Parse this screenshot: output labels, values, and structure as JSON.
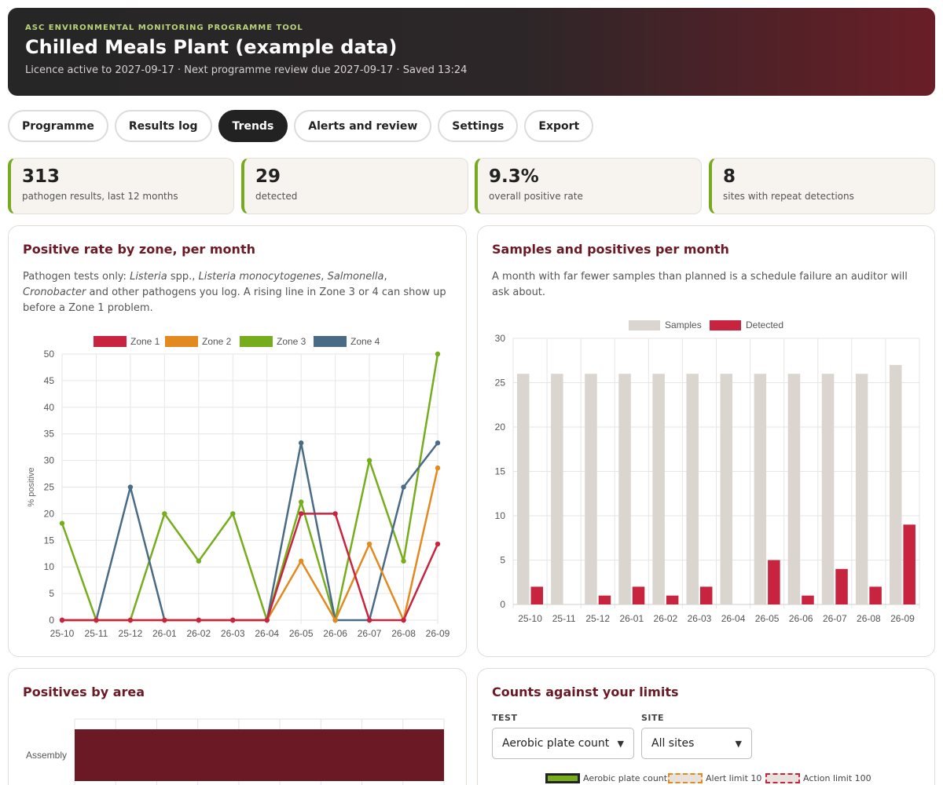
{
  "header": {
    "eyebrow": "ASC ENVIRONMENTAL MONITORING PROGRAMME TOOL",
    "title": "Chilled Meals Plant (example data)",
    "subtitle": "Licence active to 2027-09-17 · Next programme review due 2027-09-17 · Saved 13:24"
  },
  "tabs": [
    {
      "label": "Programme",
      "active": false
    },
    {
      "label": "Results log",
      "active": false
    },
    {
      "label": "Trends",
      "active": true
    },
    {
      "label": "Alerts and review",
      "active": false
    },
    {
      "label": "Settings",
      "active": false
    },
    {
      "label": "Export",
      "active": false
    }
  ],
  "stats": [
    {
      "value": "313",
      "label": "pathogen results, last 12 months"
    },
    {
      "value": "29",
      "label": "detected"
    },
    {
      "value": "9.3%",
      "label": "overall positive rate"
    },
    {
      "value": "8",
      "label": "sites with repeat detections"
    }
  ],
  "colors": {
    "accent": "#6b1a25",
    "stat_border": "#77aa1c",
    "zone1": "#c8243f",
    "zone2": "#e2891f",
    "zone3": "#76ad1c",
    "zone4": "#4a6b85",
    "samples": "#dbd5d0",
    "detected": "#c8243f",
    "area_bar": "#6b1a25"
  },
  "zone_card": {
    "title": "Positive rate by zone, per month",
    "desc_parts": [
      {
        "text": "Pathogen tests only: ",
        "italic": false
      },
      {
        "text": "Listeria",
        "italic": true
      },
      {
        "text": " spp., ",
        "italic": false
      },
      {
        "text": "Listeria monocytogenes",
        "italic": true
      },
      {
        "text": ", ",
        "italic": false
      },
      {
        "text": "Salmonella",
        "italic": true
      },
      {
        "text": ", ",
        "italic": false
      },
      {
        "text": "Cronobacter",
        "italic": true
      },
      {
        "text": " and other pathogens you log. A rising line in Zone 3 or 4 can show up before a Zone 1 problem.",
        "italic": false
      }
    ]
  },
  "samples_card": {
    "title": "Samples and positives per month",
    "desc": "A month with far fewer samples than planned is a schedule failure an auditor will ask about."
  },
  "area_card": {
    "title": "Positives by area"
  },
  "limits_card": {
    "title": "Counts against your limits",
    "test_label": "TEST",
    "site_label": "SITE",
    "test_value": "Aerobic plate count",
    "site_value": "All sites",
    "legend": [
      "Aerobic plate count",
      "Alert limit 10",
      "Action limit 100"
    ]
  },
  "chart_data": [
    {
      "type": "line",
      "title": "Positive rate by zone, per month",
      "ylabel": "% positive",
      "xlabel": "",
      "ylim": [
        0,
        50
      ],
      "yticks": [
        0,
        5,
        10,
        15,
        20,
        25,
        30,
        35,
        40,
        45,
        50
      ],
      "categories": [
        "25-10",
        "25-11",
        "25-12",
        "26-01",
        "26-02",
        "26-03",
        "26-04",
        "26-05",
        "26-06",
        "26-07",
        "26-08",
        "26-09"
      ],
      "legend_position": "top",
      "grid": true,
      "series": [
        {
          "name": "Zone 1",
          "color": "#c8243f",
          "values": [
            0,
            0,
            0,
            0,
            0,
            0,
            0,
            20,
            20,
            0,
            0,
            14.3
          ]
        },
        {
          "name": "Zone 2",
          "color": "#e2891f",
          "values": [
            0,
            0,
            0,
            0,
            0,
            0,
            0,
            11.1,
            0,
            14.3,
            0,
            28.6
          ]
        },
        {
          "name": "Zone 3",
          "color": "#76ad1c",
          "values": [
            18.2,
            0,
            0,
            20,
            11.1,
            20,
            0,
            22.2,
            0,
            30,
            11.1,
            50
          ]
        },
        {
          "name": "Zone 4",
          "color": "#4a6b85",
          "values": [
            0,
            0,
            25,
            0,
            0,
            0,
            0,
            33.3,
            0,
            0,
            25,
            33.3
          ]
        }
      ]
    },
    {
      "type": "bar",
      "title": "Samples and positives per month",
      "xlabel": "",
      "ylabel": "",
      "ylim": [
        0,
        30
      ],
      "yticks": [
        0,
        5,
        10,
        15,
        20,
        25,
        30
      ],
      "categories": [
        "25-10",
        "25-11",
        "25-12",
        "26-01",
        "26-02",
        "26-03",
        "26-04",
        "26-05",
        "26-06",
        "26-07",
        "26-08",
        "26-09"
      ],
      "legend_position": "top",
      "grid": true,
      "series": [
        {
          "name": "Samples",
          "color": "#dbd5d0",
          "values": [
            26,
            26,
            26,
            26,
            26,
            26,
            26,
            26,
            26,
            26,
            26,
            27
          ]
        },
        {
          "name": "Detected",
          "color": "#c8243f",
          "values": [
            2,
            0,
            1,
            2,
            1,
            2,
            0,
            5,
            1,
            4,
            2,
            9
          ]
        }
      ]
    },
    {
      "type": "bar",
      "orientation": "horizontal",
      "title": "Positives by area",
      "categories": [
        "Assembly"
      ],
      "series": [
        {
          "name": "",
          "color": "#6b1a25",
          "values": [
            1
          ]
        }
      ],
      "grid": true
    }
  ]
}
